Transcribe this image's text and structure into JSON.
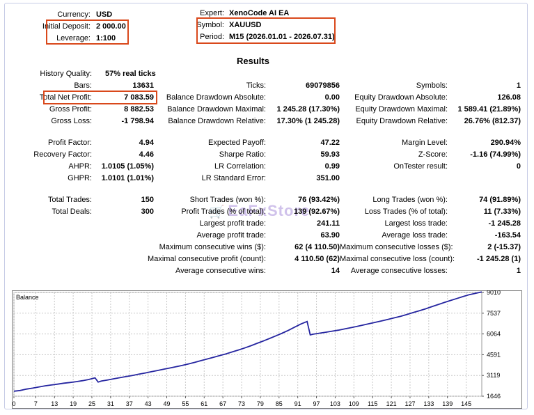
{
  "header": {
    "currency_label": "Currency:",
    "currency_value": "USD",
    "deposit_label": "Initial Deposit:",
    "deposit_value": "2 000.00",
    "leverage_label": "Leverage:",
    "leverage_value": "1:100",
    "expert_label": "Expert:",
    "expert_value": "XenoCode AI EA",
    "symbol_label": "Symbol:",
    "symbol_value": "XAUUSD",
    "period_label": "Period:",
    "period_value": "M15 (2026.01.01 - 2026.07.31)"
  },
  "results_title": "Results",
  "watermark": "EaFxStore",
  "col1": [
    {
      "label": "History Quality:",
      "value": "57% real ticks"
    },
    {
      "label": "Bars:",
      "value": "13631"
    },
    {
      "label": "Total Net Profit:",
      "value": "7 083.59"
    },
    {
      "label": "Gross Profit:",
      "value": "8 882.53"
    },
    {
      "label": "Gross Loss:",
      "value": "-1 798.94"
    },
    {
      "label": "Profit Factor:",
      "value": "4.94"
    },
    {
      "label": "Recovery Factor:",
      "value": "4.46"
    },
    {
      "label": "AHPR:",
      "value": "1.0105 (1.05%)"
    },
    {
      "label": "GHPR:",
      "value": "1.0101 (1.01%)"
    },
    {
      "label": "Total Trades:",
      "value": "150"
    },
    {
      "label": "Total Deals:",
      "value": "300"
    }
  ],
  "col2": [
    {
      "label": "Ticks:",
      "value": "69079856"
    },
    {
      "label": "Balance Drawdown Absolute:",
      "value": "0.00"
    },
    {
      "label": "Balance Drawdown Maximal:",
      "value": "1 245.28 (17.30%)"
    },
    {
      "label": "Balance Drawdown Relative:",
      "value": "17.30% (1 245.28)"
    },
    {
      "label": "Expected Payoff:",
      "value": "47.22"
    },
    {
      "label": "Sharpe Ratio:",
      "value": "59.93"
    },
    {
      "label": "LR Correlation:",
      "value": "0.99"
    },
    {
      "label": "LR Standard Error:",
      "value": "351.00"
    },
    {
      "label": "Short Trades (won %):",
      "value": "76 (93.42%)"
    },
    {
      "label": "Profit Trades (% of total):",
      "value": "139 (92.67%)"
    },
    {
      "label": "Largest profit trade:",
      "value": "241.11"
    },
    {
      "label": "Average profit trade:",
      "value": "63.90"
    },
    {
      "label": "Maximum consecutive wins ($):",
      "value": "62 (4 110.50)"
    },
    {
      "label": "Maximal consecutive profit (count):",
      "value": "4 110.50 (62)"
    },
    {
      "label": "Average consecutive wins:",
      "value": "14"
    }
  ],
  "col3": [
    {
      "label": "Symbols:",
      "value": "1"
    },
    {
      "label": "Equity Drawdown Absolute:",
      "value": "126.08"
    },
    {
      "label": "Equity Drawdown Maximal:",
      "value": "1 589.41 (21.89%)"
    },
    {
      "label": "Equity Drawdown Relative:",
      "value": "26.76% (812.37)"
    },
    {
      "label": "Margin Level:",
      "value": "290.94%"
    },
    {
      "label": "Z-Score:",
      "value": "-1.16 (74.99%)"
    },
    {
      "label": "OnTester result:",
      "value": "0"
    },
    {
      "label": "Long Trades (won %):",
      "value": "74 (91.89%)"
    },
    {
      "label": "Loss Trades (% of total):",
      "value": "11 (7.33%)"
    },
    {
      "label": "Largest loss trade:",
      "value": "-1 245.28"
    },
    {
      "label": "Average loss trade:",
      "value": "-163.54"
    },
    {
      "label": "Maximum consecutive losses ($):",
      "value": "2 (-15.37)"
    },
    {
      "label": "Maximal consecutive loss (count):",
      "value": "-1 245.28 (1)"
    },
    {
      "label": "Average consecutive losses:",
      "value": "1"
    }
  ],
  "chart_data": {
    "type": "line",
    "title": "Balance",
    "xlabel": "",
    "ylabel": "",
    "x_ticks": [
      "0",
      "7",
      "13",
      "19",
      "25",
      "31",
      "37",
      "43",
      "49",
      "55",
      "61",
      "67",
      "73",
      "79",
      "85",
      "91",
      "97",
      "103",
      "109",
      "115",
      "121",
      "127",
      "133",
      "139",
      "145"
    ],
    "y_ticks": [
      "1646",
      "3119",
      "4591",
      "6064",
      "7537",
      "9010"
    ],
    "xlim": [
      0,
      150
    ],
    "ylim": [
      1646,
      9010
    ],
    "grid": true,
    "line_color": "#2525a0",
    "series": [
      {
        "x": [
          0,
          2,
          4,
          6,
          8,
          10,
          12,
          14,
          16,
          18,
          20,
          22,
          24,
          26,
          27,
          28,
          30,
          32,
          34,
          36,
          38,
          40,
          42,
          44,
          46,
          48,
          50,
          52,
          54,
          56,
          58,
          60,
          62,
          64,
          66,
          68,
          70,
          72,
          74,
          76,
          78,
          80,
          82,
          84,
          86,
          88,
          90,
          92,
          94,
          95,
          96,
          98,
          100,
          102,
          104,
          106,
          108,
          110,
          112,
          114,
          116,
          118,
          120,
          122,
          124,
          126,
          128,
          130,
          132,
          134,
          136,
          138,
          140,
          142,
          144,
          146,
          148,
          150
        ],
        "y": [
          2000,
          2050,
          2150,
          2220,
          2300,
          2380,
          2440,
          2500,
          2570,
          2620,
          2680,
          2750,
          2830,
          2950,
          2650,
          2720,
          2800,
          2880,
          2960,
          3040,
          3120,
          3210,
          3290,
          3380,
          3470,
          3560,
          3650,
          3740,
          3830,
          3940,
          4050,
          4170,
          4290,
          4410,
          4530,
          4650,
          4790,
          4930,
          5070,
          5230,
          5400,
          5570,
          5750,
          5930,
          6120,
          6320,
          6550,
          6770,
          6950,
          6000,
          6050,
          6120,
          6190,
          6260,
          6330,
          6420,
          6510,
          6600,
          6700,
          6800,
          6900,
          7000,
          7100,
          7210,
          7320,
          7450,
          7580,
          7710,
          7850,
          8000,
          8150,
          8300,
          8440,
          8580,
          8720,
          8850,
          8950,
          9050
        ]
      }
    ]
  }
}
